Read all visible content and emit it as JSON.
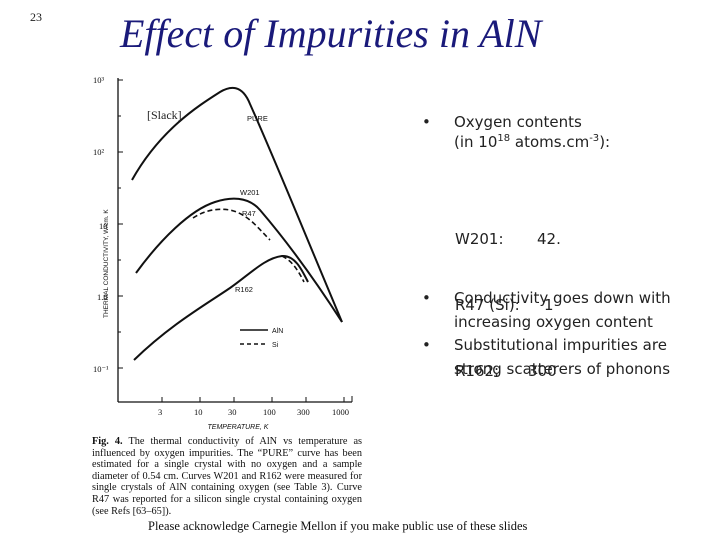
{
  "slide_number": "23",
  "title": "Effect of Impurities in AlN",
  "figure": {
    "source_tag": "[Slack]",
    "y_axis_label": "THERMAL CONDUCTIVITY, W/cm. K",
    "x_axis_label": "TEMPERATURE, K",
    "y_ticks": [
      "10³",
      "10²",
      "10",
      "1.0",
      "10⁻¹"
    ],
    "x_ticks": [
      "3",
      "10",
      "30",
      "100",
      "300",
      "1000"
    ],
    "curve_labels": {
      "pure": "PURE",
      "w201": "W201",
      "r47": "R47",
      "r162": "R162"
    },
    "legend": [
      {
        "label": "AlN",
        "style": "solid"
      },
      {
        "label": "Si",
        "style": "dashed"
      }
    ],
    "caption_lead": "Fig. 4.",
    "caption_text": "The thermal conductivity of AlN vs temperature as influenced by oxygen impurities. The “PURE” curve has been estimated for a single crystal with no oxygen and a sample diameter of 0.54 cm. Curves W201 and R162 were measured for single crystals of AlN containing oxygen (see Table 3). Curve R47 was reported for a silicon single crystal containing oxygen (see Refs [63–65])."
  },
  "bullets_top": {
    "line1": "Oxygen contents",
    "line2_prefix": "(in 10",
    "line2_sup1": "18",
    "line2_mid": " atoms.cm",
    "line2_sup2": "-3",
    "line2_suffix": "):"
  },
  "oxygen_values": [
    {
      "sample": "W201:",
      "value": "42."
    },
    {
      "sample": "R47 (Si):",
      "value": "1"
    },
    {
      "sample": "R162:",
      "value": "300"
    }
  ],
  "bullets_bottom": [
    "Conductivity goes down with increasing oxygen content",
    "Substitutional impurities are strong scatterers of phonons"
  ],
  "footer": "Please acknowledge Carnegie Mellon if you make public use of these slides"
}
